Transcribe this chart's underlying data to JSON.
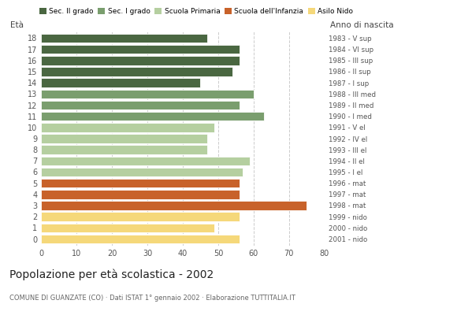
{
  "ages": [
    18,
    17,
    16,
    15,
    14,
    13,
    12,
    11,
    10,
    9,
    8,
    7,
    6,
    5,
    4,
    3,
    2,
    1,
    0
  ],
  "values": [
    47,
    56,
    56,
    54,
    45,
    60,
    56,
    63,
    49,
    47,
    47,
    59,
    57,
    56,
    56,
    75,
    56,
    49,
    56
  ],
  "colors": [
    "#4a6741",
    "#4a6741",
    "#4a6741",
    "#4a6741",
    "#4a6741",
    "#7a9e6e",
    "#7a9e6e",
    "#7a9e6e",
    "#b5cfa0",
    "#b5cfa0",
    "#b5cfa0",
    "#b5cfa0",
    "#b5cfa0",
    "#c8622a",
    "#c8622a",
    "#c8622a",
    "#f5d87a",
    "#f5d87a",
    "#f5d87a"
  ],
  "right_labels": [
    "1983 - V sup",
    "1984 - VI sup",
    "1985 - III sup",
    "1986 - II sup",
    "1987 - I sup",
    "1988 - III med",
    "1989 - II med",
    "1990 - I med",
    "1991 - V el",
    "1992 - IV el",
    "1993 - III el",
    "1994 - II el",
    "1995 - I el",
    "1996 - mat",
    "1997 - mat",
    "1998 - mat",
    "1999 - nido",
    "2000 - nido",
    "2001 - nido"
  ],
  "legend_labels": [
    "Sec. II grado",
    "Sec. I grado",
    "Scuola Primaria",
    "Scuola dell'Infanzia",
    "Asilo Nido"
  ],
  "legend_colors": [
    "#4a6741",
    "#7a9e6e",
    "#b5cfa0",
    "#c8622a",
    "#f5d87a"
  ],
  "title": "Popolazione per età scolastica - 2002",
  "subtitle": "COMUNE DI GUANZATE (CO) · Dati ISTAT 1° gennaio 2002 · Elaborazione TUTTITALIA.IT",
  "xlabel_left": "Età",
  "xlabel_right": "Anno di nascita",
  "xlim": [
    0,
    80
  ],
  "xticks": [
    0,
    10,
    20,
    30,
    40,
    50,
    60,
    70,
    80
  ],
  "background_color": "#ffffff",
  "grid_color": "#cccccc"
}
